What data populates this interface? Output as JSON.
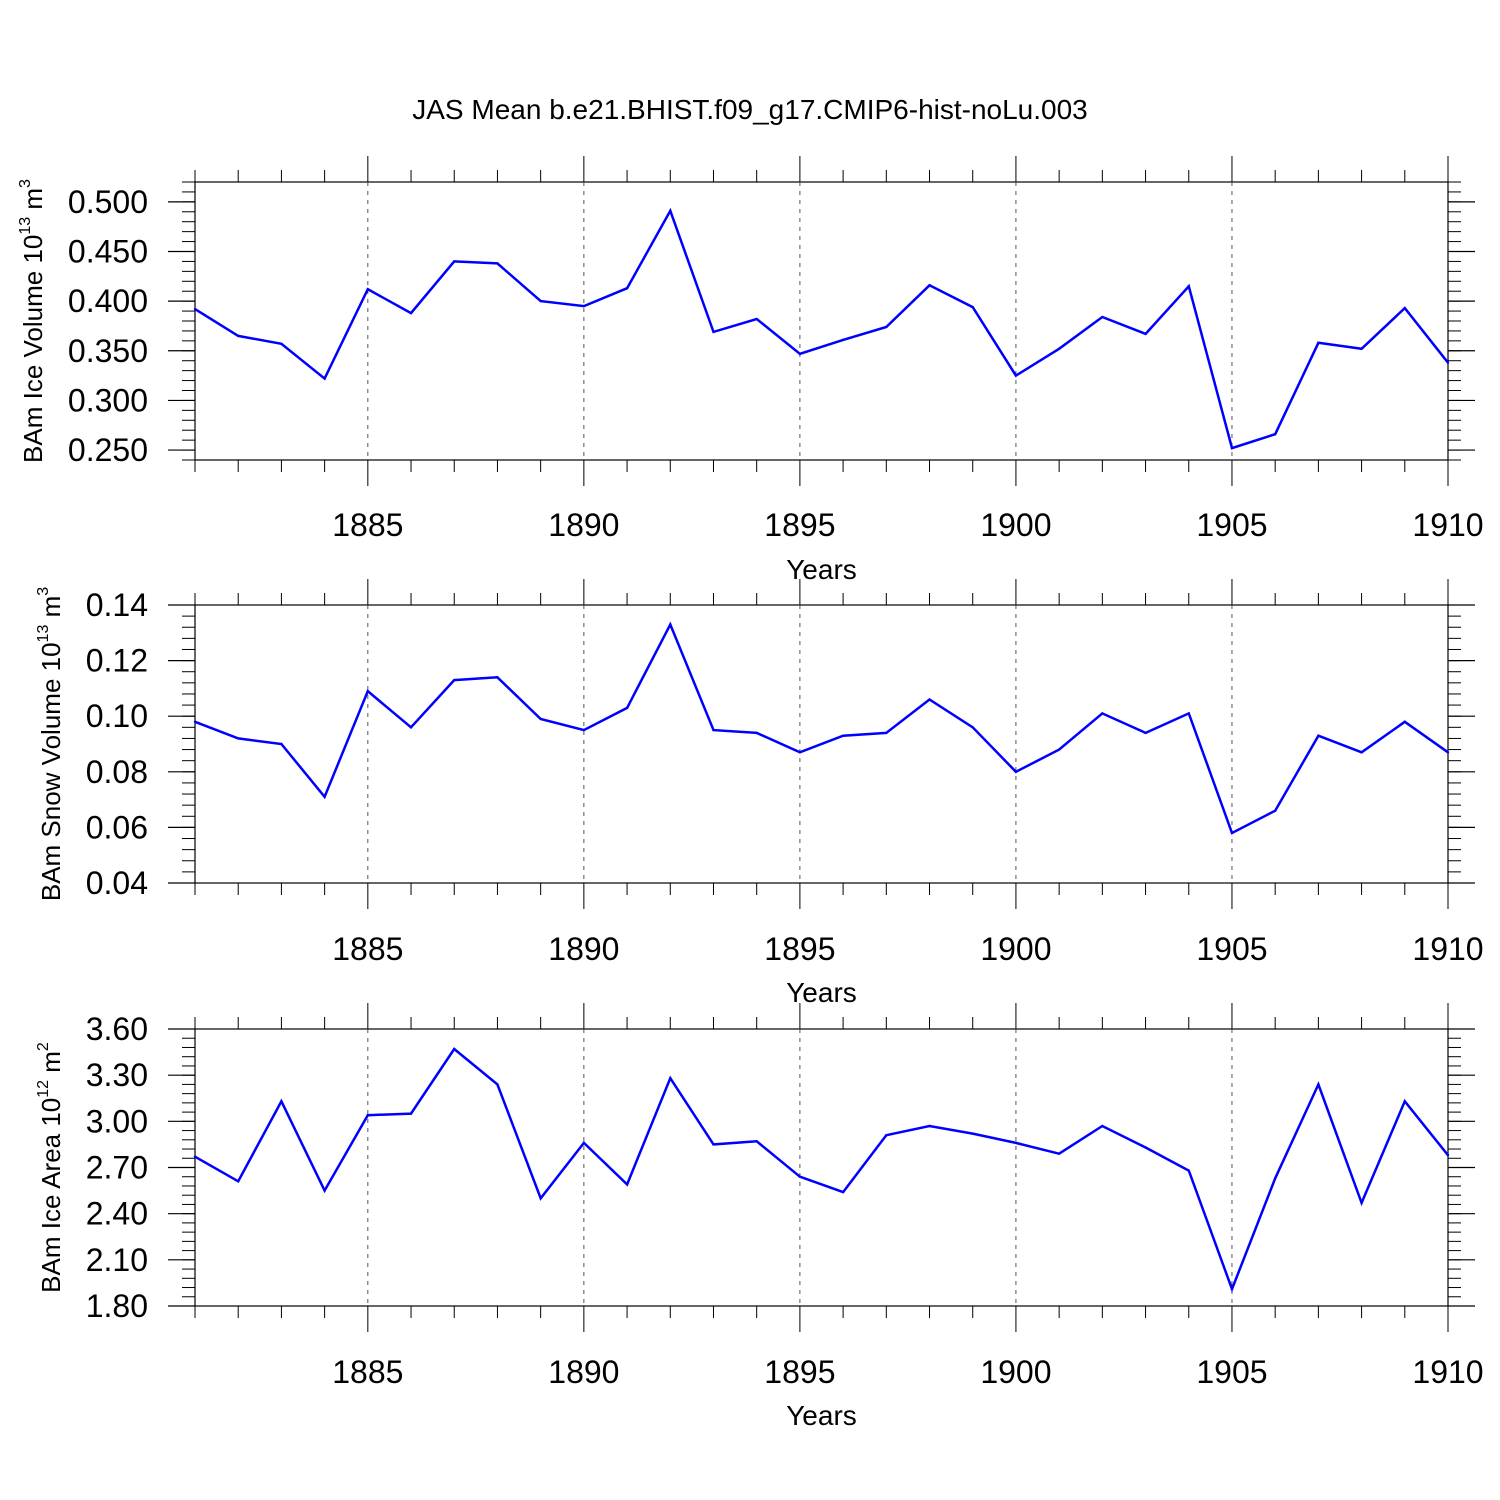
{
  "title": "JAS Mean b.e21.BHIST.f09_g17.CMIP6-hist-noLu.003",
  "line_color": "#0000ff",
  "chart_data": [
    {
      "type": "line",
      "ylabel": {
        "prefix": "BAm Ice Volume 10",
        "exp": "13",
        "unit": "m",
        "unit_exp": "3"
      },
      "xlabel": "Years",
      "xlim": [
        1881,
        1910
      ],
      "x_ticks": [
        1885,
        1890,
        1895,
        1900,
        1905,
        1910
      ],
      "ylim": [
        0.24,
        0.52
      ],
      "y_ticks": [
        0.25,
        0.3,
        0.35,
        0.4,
        0.45,
        0.5
      ],
      "y_tick_labels": [
        "0.250",
        "0.300",
        "0.350",
        "0.400",
        "0.450",
        "0.500"
      ],
      "y_minor_step": 0.01,
      "x": [
        1881,
        1882,
        1883,
        1884,
        1885,
        1886,
        1887,
        1888,
        1889,
        1890,
        1891,
        1892,
        1893,
        1894,
        1895,
        1896,
        1897,
        1898,
        1899,
        1900,
        1901,
        1902,
        1903,
        1904,
        1905,
        1906,
        1907,
        1908,
        1909,
        1910
      ],
      "values": [
        0.392,
        0.365,
        0.357,
        0.322,
        0.412,
        0.388,
        0.44,
        0.438,
        0.4,
        0.395,
        0.413,
        0.491,
        0.369,
        0.382,
        0.347,
        0.361,
        0.374,
        0.416,
        0.394,
        0.325,
        0.352,
        0.384,
        0.367,
        0.415,
        0.252,
        0.266,
        0.358,
        0.352,
        0.393,
        0.338
      ]
    },
    {
      "type": "line",
      "ylabel": {
        "prefix": "BAm Snow Volume 10",
        "exp": "13",
        "unit": "m",
        "unit_exp": "3"
      },
      "xlabel": "Years",
      "xlim": [
        1881,
        1910
      ],
      "x_ticks": [
        1885,
        1890,
        1895,
        1900,
        1905,
        1910
      ],
      "ylim": [
        0.04,
        0.14
      ],
      "y_ticks": [
        0.04,
        0.06,
        0.08,
        0.1,
        0.12,
        0.14
      ],
      "y_tick_labels": [
        "0.04",
        "0.06",
        "0.08",
        "0.10",
        "0.12",
        "0.14"
      ],
      "y_minor_step": 0.004,
      "x": [
        1881,
        1882,
        1883,
        1884,
        1885,
        1886,
        1887,
        1888,
        1889,
        1890,
        1891,
        1892,
        1893,
        1894,
        1895,
        1896,
        1897,
        1898,
        1899,
        1900,
        1901,
        1902,
        1903,
        1904,
        1905,
        1906,
        1907,
        1908,
        1909,
        1910
      ],
      "values": [
        0.098,
        0.092,
        0.09,
        0.071,
        0.109,
        0.096,
        0.113,
        0.114,
        0.099,
        0.095,
        0.103,
        0.133,
        0.095,
        0.094,
        0.087,
        0.093,
        0.094,
        0.106,
        0.096,
        0.08,
        0.088,
        0.101,
        0.094,
        0.101,
        0.058,
        0.066,
        0.093,
        0.087,
        0.098,
        0.087
      ]
    },
    {
      "type": "line",
      "ylabel": {
        "prefix": "BAm Ice Area 10",
        "exp": "12",
        "unit": "m",
        "unit_exp": "2"
      },
      "xlabel": "Years",
      "xlim": [
        1881,
        1910
      ],
      "x_ticks": [
        1885,
        1890,
        1895,
        1900,
        1905,
        1910
      ],
      "ylim": [
        1.8,
        3.6
      ],
      "y_ticks": [
        1.8,
        2.1,
        2.4,
        2.7,
        3.0,
        3.3,
        3.6
      ],
      "y_tick_labels": [
        "1.80",
        "2.10",
        "2.40",
        "2.70",
        "3.00",
        "3.30",
        "3.60"
      ],
      "y_minor_step": 0.06,
      "x": [
        1881,
        1882,
        1883,
        1884,
        1885,
        1886,
        1887,
        1888,
        1889,
        1890,
        1891,
        1892,
        1893,
        1894,
        1895,
        1896,
        1897,
        1898,
        1899,
        1900,
        1901,
        1902,
        1903,
        1904,
        1905,
        1906,
        1907,
        1908,
        1909,
        1910
      ],
      "values": [
        2.77,
        2.61,
        3.13,
        2.55,
        3.04,
        3.05,
        3.47,
        3.24,
        2.5,
        2.86,
        2.59,
        3.28,
        2.85,
        2.87,
        2.64,
        2.54,
        2.91,
        2.97,
        2.92,
        2.86,
        2.79,
        2.97,
        2.83,
        2.68,
        1.91,
        2.63,
        3.24,
        2.47,
        3.13,
        2.78
      ]
    }
  ]
}
